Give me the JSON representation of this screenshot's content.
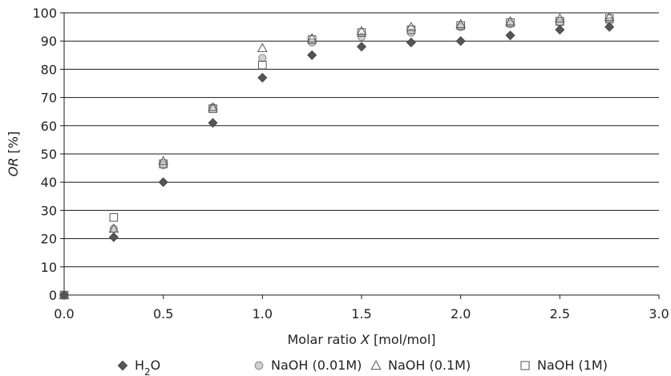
{
  "chart_data": {
    "type": "scatter",
    "title": "",
    "xlabel": "Molar ratio X [mol/mol]",
    "ylabel": "OR [%]",
    "xlabel_parts": [
      {
        "text": "Molar ratio ",
        "italic": false
      },
      {
        "text": "X",
        "italic": true
      },
      {
        "text": " [mol/mol]",
        "italic": false
      }
    ],
    "ylabel_parts": [
      {
        "text": "OR",
        "italic": true
      },
      {
        "text": " [%]",
        "italic": false
      }
    ],
    "xlim": [
      0,
      3
    ],
    "ylim": [
      0,
      100
    ],
    "xticks": [
      "0.0",
      "0.5",
      "1.0",
      "1.5",
      "2.0",
      "2.5",
      "3.0"
    ],
    "yticks": [
      "0",
      "10",
      "20",
      "30",
      "40",
      "50",
      "60",
      "70",
      "80",
      "90",
      "100"
    ],
    "grid": "horizontal",
    "legend_position": "bottom",
    "series": [
      {
        "name": "H2O",
        "legend_parts": [
          {
            "text": "H",
            "sub": false
          },
          {
            "text": "2",
            "sub": true
          },
          {
            "text": "O",
            "sub": false
          }
        ],
        "marker": "diamond-filled",
        "color": "#555555",
        "x": [
          0,
          0.25,
          0.5,
          0.75,
          1.0,
          1.25,
          1.5,
          1.75,
          2.0,
          2.25,
          2.5,
          2.75
        ],
        "y": [
          0,
          20.5,
          40,
          61,
          77,
          85,
          88,
          89.5,
          90,
          92,
          94,
          95
        ]
      },
      {
        "name": "NaOH (0.01M)",
        "marker": "circle-filled-light",
        "color": "#cccccc",
        "x": [
          0,
          0.25,
          0.5,
          0.75,
          1.0,
          1.25,
          1.5,
          1.75,
          2.0,
          2.25,
          2.5,
          2.75
        ],
        "y": [
          0,
          23.5,
          46,
          66.5,
          84,
          89.5,
          91.5,
          93,
          95,
          96,
          96.5,
          97
        ]
      },
      {
        "name": "NaOH (0.1M)",
        "marker": "triangle-open",
        "color": "#555555",
        "x": [
          0,
          0.25,
          0.5,
          0.75,
          1.0,
          1.25,
          1.5,
          1.75,
          2.0,
          2.25,
          2.5,
          2.75
        ],
        "y": [
          0,
          23.5,
          47.5,
          66.5,
          87.5,
          91,
          93.5,
          95,
          96,
          97,
          98,
          98.5
        ]
      },
      {
        "name": "NaOH (1M)",
        "marker": "square-open",
        "color": "#555555",
        "x": [
          0,
          0.25,
          0.5,
          0.75,
          1.0,
          1.25,
          1.5,
          1.75,
          2.0,
          2.25,
          2.5,
          2.75
        ],
        "y": [
          0,
          27.5,
          46.5,
          66,
          81.5,
          90.5,
          93,
          94,
          95.5,
          96.5,
          97,
          98
        ]
      }
    ]
  }
}
